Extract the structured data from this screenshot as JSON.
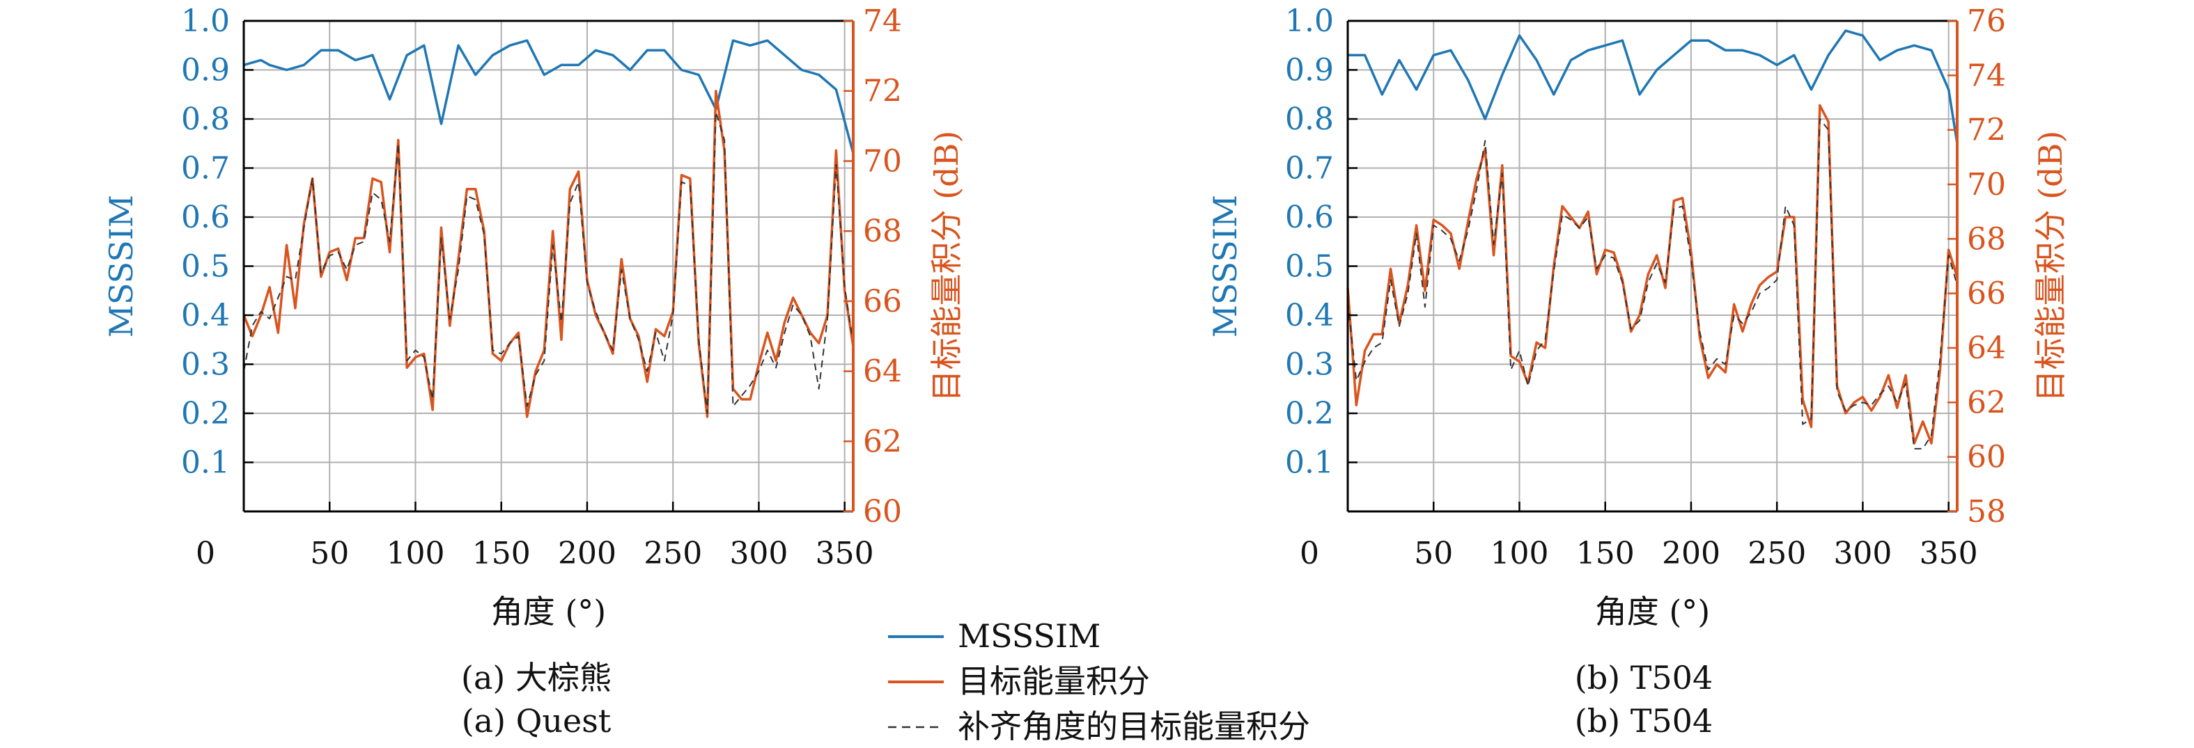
{
  "colors": {
    "left_axis": "#1f77b4",
    "right_axis": "#d9541e",
    "dashed": "#333333",
    "grid": "#b0b0b0"
  },
  "legend": {
    "items": [
      {
        "label": "MSSSIM",
        "style": "solid-blue"
      },
      {
        "label": "目标能量积分",
        "style": "solid-orange"
      },
      {
        "label": "补齐角度的目标能量积分",
        "style": "dashed-gray"
      }
    ]
  },
  "chart_data": [
    {
      "type": "line",
      "captions": [
        "(a) 大棕熊",
        "(a) Quest"
      ],
      "xlabel": "角度 (°)",
      "ylabel_left": "MSSSIM",
      "ylabel_right": "目标能量积分 (dB)",
      "xlim": [
        0,
        355
      ],
      "ylim_left": [
        0.0,
        1.0
      ],
      "ylim_right": [
        60,
        74
      ],
      "xticks": [
        0,
        50,
        100,
        150,
        200,
        250,
        300,
        350
      ],
      "yticks_left": [
        "0.1",
        "0.2",
        "0.3",
        "0.4",
        "0.5",
        "0.6",
        "0.7",
        "0.8",
        "0.9",
        "1.0"
      ],
      "yticks_right": [
        60,
        62,
        64,
        66,
        68,
        70,
        72,
        74
      ],
      "grid": true,
      "series": [
        {
          "name": "MSSSIM",
          "axis": "left",
          "style": "solid-blue",
          "x": [
            0,
            10,
            15,
            25,
            35,
            45,
            55,
            65,
            75,
            85,
            95,
            105,
            115,
            125,
            135,
            145,
            155,
            165,
            175,
            185,
            195,
            205,
            215,
            225,
            235,
            245,
            255,
            265,
            275,
            285,
            295,
            305,
            315,
            325,
            335,
            345,
            355
          ],
          "y": [
            0.91,
            0.92,
            0.91,
            0.9,
            0.91,
            0.94,
            0.94,
            0.92,
            0.93,
            0.84,
            0.93,
            0.95,
            0.79,
            0.95,
            0.89,
            0.93,
            0.95,
            0.96,
            0.89,
            0.91,
            0.91,
            0.94,
            0.93,
            0.9,
            0.94,
            0.94,
            0.9,
            0.89,
            0.82,
            0.96,
            0.95,
            0.96,
            0.93,
            0.9,
            0.89,
            0.86,
            0.73
          ]
        },
        {
          "name": "目标能量积分",
          "axis": "right",
          "style": "solid-orange",
          "x": [
            0,
            5,
            10,
            15,
            20,
            25,
            30,
            35,
            40,
            45,
            50,
            55,
            60,
            65,
            70,
            75,
            80,
            85,
            90,
            95,
            100,
            105,
            110,
            115,
            120,
            125,
            130,
            135,
            140,
            145,
            150,
            155,
            160,
            165,
            170,
            175,
            180,
            185,
            190,
            195,
            200,
            205,
            210,
            215,
            220,
            225,
            230,
            235,
            240,
            245,
            250,
            255,
            260,
            265,
            270,
            275,
            280,
            285,
            290,
            295,
            300,
            305,
            310,
            315,
            320,
            325,
            330,
            335,
            340,
            345,
            350,
            355
          ],
          "y": [
            65.6,
            65,
            65.6,
            66.4,
            65.1,
            67.6,
            65.8,
            68.2,
            69.5,
            66.7,
            67.4,
            67.5,
            66.6,
            67.8,
            67.8,
            69.5,
            69.4,
            67.4,
            70.6,
            64.1,
            64.4,
            64.5,
            62.9,
            68.1,
            65.3,
            67.2,
            69.2,
            69.2,
            68,
            64.5,
            64.3,
            64.8,
            65.1,
            62.7,
            64,
            64.6,
            68,
            64.9,
            69.2,
            69.7,
            66.6,
            65.6,
            65.1,
            64.5,
            67.2,
            65.5,
            65,
            63.7,
            65.2,
            65,
            65.7,
            69.6,
            69.5,
            64.8,
            62.7,
            72,
            70.3,
            63.5,
            63.2,
            63.2,
            64.2,
            65.1,
            64.3,
            65.4,
            66.1,
            65.6,
            65.1,
            64.8,
            65.6,
            70.3,
            66.3,
            64.7
          ]
        },
        {
          "name": "补齐角度的目标能量积分",
          "axis": "right",
          "style": "dashed-gray",
          "x": [
            0,
            5,
            10,
            15,
            20,
            25,
            30,
            35,
            40,
            45,
            50,
            55,
            60,
            65,
            70,
            75,
            80,
            85,
            90,
            95,
            100,
            105,
            110,
            115,
            120,
            125,
            130,
            135,
            140,
            145,
            150,
            155,
            160,
            165,
            170,
            175,
            180,
            185,
            190,
            195,
            200,
            205,
            210,
            215,
            220,
            225,
            230,
            235,
            240,
            245,
            250,
            255,
            260,
            265,
            270,
            275,
            280,
            285,
            290,
            295,
            300,
            305,
            310,
            315,
            320,
            325,
            330,
            335,
            340,
            345,
            350,
            355
          ],
          "y": [
            64,
            65.3,
            65.7,
            65.5,
            66.1,
            66.7,
            66.6,
            68.1,
            69.5,
            66.8,
            67.3,
            67.4,
            66.9,
            67.6,
            67.7,
            69.1,
            68.9,
            67.7,
            70.5,
            64.3,
            64.6,
            64.4,
            63.2,
            67.8,
            65.5,
            66.9,
            69,
            68.9,
            67.9,
            64.6,
            64.5,
            64.8,
            65,
            63,
            63.9,
            64.3,
            67.6,
            65.4,
            68.8,
            69.4,
            66.5,
            65.7,
            65.1,
            64.6,
            66.9,
            65.5,
            64.9,
            64,
            65.1,
            64.3,
            65.6,
            69.4,
            69.3,
            64.9,
            62.8,
            71.4,
            70.6,
            63,
            63.3,
            63.6,
            64,
            64.6,
            64.1,
            65.1,
            65.9,
            65.6,
            65,
            63.5,
            65.5,
            69.9,
            66.4,
            64.8
          ]
        }
      ]
    },
    {
      "type": "line",
      "captions": [
        "(b) T504",
        "(b) T504"
      ],
      "xlabel": "角度 (°)",
      "ylabel_left": "MSSSIM",
      "ylabel_right": "目标能量积分 (dB)",
      "xlim": [
        0,
        355
      ],
      "ylim_left": [
        0.0,
        1.0
      ],
      "ylim_right": [
        58,
        76
      ],
      "xticks": [
        0,
        50,
        100,
        150,
        200,
        250,
        300,
        350
      ],
      "yticks_left": [
        "0.1",
        "0.2",
        "0.3",
        "0.4",
        "0.5",
        "0.6",
        "0.7",
        "0.8",
        "0.9",
        "1.0"
      ],
      "yticks_right": [
        58,
        60,
        62,
        64,
        66,
        68,
        70,
        72,
        74,
        76
      ],
      "grid": true,
      "series": [
        {
          "name": "MSSSIM",
          "axis": "left",
          "style": "solid-blue",
          "x": [
            0,
            10,
            20,
            30,
            40,
            50,
            60,
            70,
            80,
            90,
            100,
            110,
            120,
            130,
            140,
            150,
            160,
            170,
            180,
            190,
            200,
            210,
            220,
            230,
            240,
            250,
            260,
            270,
            280,
            290,
            300,
            310,
            320,
            330,
            340,
            350,
            355
          ],
          "y": [
            0.93,
            0.93,
            0.85,
            0.92,
            0.86,
            0.93,
            0.94,
            0.88,
            0.8,
            0.89,
            0.97,
            0.92,
            0.85,
            0.92,
            0.94,
            0.95,
            0.96,
            0.85,
            0.9,
            0.93,
            0.96,
            0.96,
            0.94,
            0.94,
            0.93,
            0.91,
            0.93,
            0.86,
            0.93,
            0.98,
            0.97,
            0.92,
            0.94,
            0.95,
            0.94,
            0.86,
            0.75
          ]
        },
        {
          "name": "目标能量积分",
          "axis": "right",
          "style": "solid-orange",
          "x": [
            0,
            5,
            10,
            15,
            20,
            25,
            30,
            35,
            40,
            45,
            50,
            55,
            60,
            65,
            70,
            75,
            80,
            85,
            90,
            95,
            100,
            105,
            110,
            115,
            120,
            125,
            130,
            135,
            140,
            145,
            150,
            155,
            160,
            165,
            170,
            175,
            180,
            185,
            190,
            195,
            200,
            205,
            210,
            215,
            220,
            225,
            230,
            235,
            240,
            245,
            250,
            255,
            260,
            265,
            270,
            275,
            280,
            285,
            290,
            295,
            300,
            305,
            310,
            315,
            320,
            325,
            330,
            335,
            340,
            345,
            350,
            355
          ],
          "y": [
            66.2,
            61.9,
            63.9,
            64.5,
            64.5,
            66.9,
            64.9,
            66.3,
            68.5,
            66.1,
            68.7,
            68.5,
            68.2,
            66.9,
            68.6,
            70.2,
            71.3,
            67.4,
            70.7,
            63.7,
            63.5,
            62.7,
            64.2,
            64,
            67,
            69.2,
            68.8,
            68.4,
            69,
            66.7,
            67.6,
            67.5,
            66.5,
            64.6,
            65.2,
            66.7,
            67.4,
            66.2,
            69.4,
            69.5,
            67.5,
            64.4,
            62.9,
            63.4,
            63.1,
            65.6,
            64.6,
            65.6,
            66.3,
            66.6,
            66.8,
            68.8,
            68.8,
            62.1,
            61.1,
            72.9,
            72.3,
            62.6,
            61.6,
            62,
            62.2,
            61.7,
            62.2,
            63,
            61.8,
            63,
            60.5,
            61.3,
            60.5,
            63.2,
            67.6,
            66.6
          ]
        },
        {
          "name": "补齐角度的目标能量积分",
          "axis": "right",
          "style": "dashed-gray",
          "x": [
            0,
            5,
            10,
            15,
            20,
            25,
            30,
            35,
            40,
            45,
            50,
            55,
            60,
            65,
            70,
            75,
            80,
            85,
            90,
            95,
            100,
            105,
            110,
            115,
            120,
            125,
            130,
            135,
            140,
            145,
            150,
            155,
            160,
            165,
            170,
            175,
            180,
            185,
            190,
            195,
            200,
            205,
            210,
            215,
            220,
            225,
            230,
            235,
            240,
            245,
            250,
            255,
            260,
            265,
            270,
            275,
            280,
            285,
            290,
            295,
            300,
            305,
            310,
            315,
            320,
            325,
            330,
            335,
            340,
            345,
            350,
            355
          ],
          "y": [
            65.7,
            62.8,
            63.5,
            64,
            64.2,
            66.5,
            64.8,
            66,
            68.2,
            65.5,
            68.5,
            68.3,
            68,
            67.2,
            68.3,
            69.8,
            71.6,
            67.8,
            70.4,
            63.2,
            63.9,
            62.6,
            63.9,
            64.3,
            66.8,
            68.9,
            68.7,
            68.4,
            68.8,
            66.9,
            67.4,
            67.3,
            66.4,
            64.7,
            65,
            66.4,
            67.1,
            66.4,
            69.1,
            69.2,
            67.2,
            64.6,
            63.2,
            63.6,
            63.4,
            65.2,
            64.9,
            65.3,
            66,
            66.2,
            66.5,
            69.2,
            68.5,
            61.2,
            61.4,
            72.4,
            72,
            62.4,
            61.7,
            61.9,
            62,
            61.9,
            62.3,
            62.6,
            62,
            62.7,
            60.3,
            60.3,
            60.8,
            63.6,
            67.4,
            66.3
          ]
        }
      ]
    }
  ]
}
